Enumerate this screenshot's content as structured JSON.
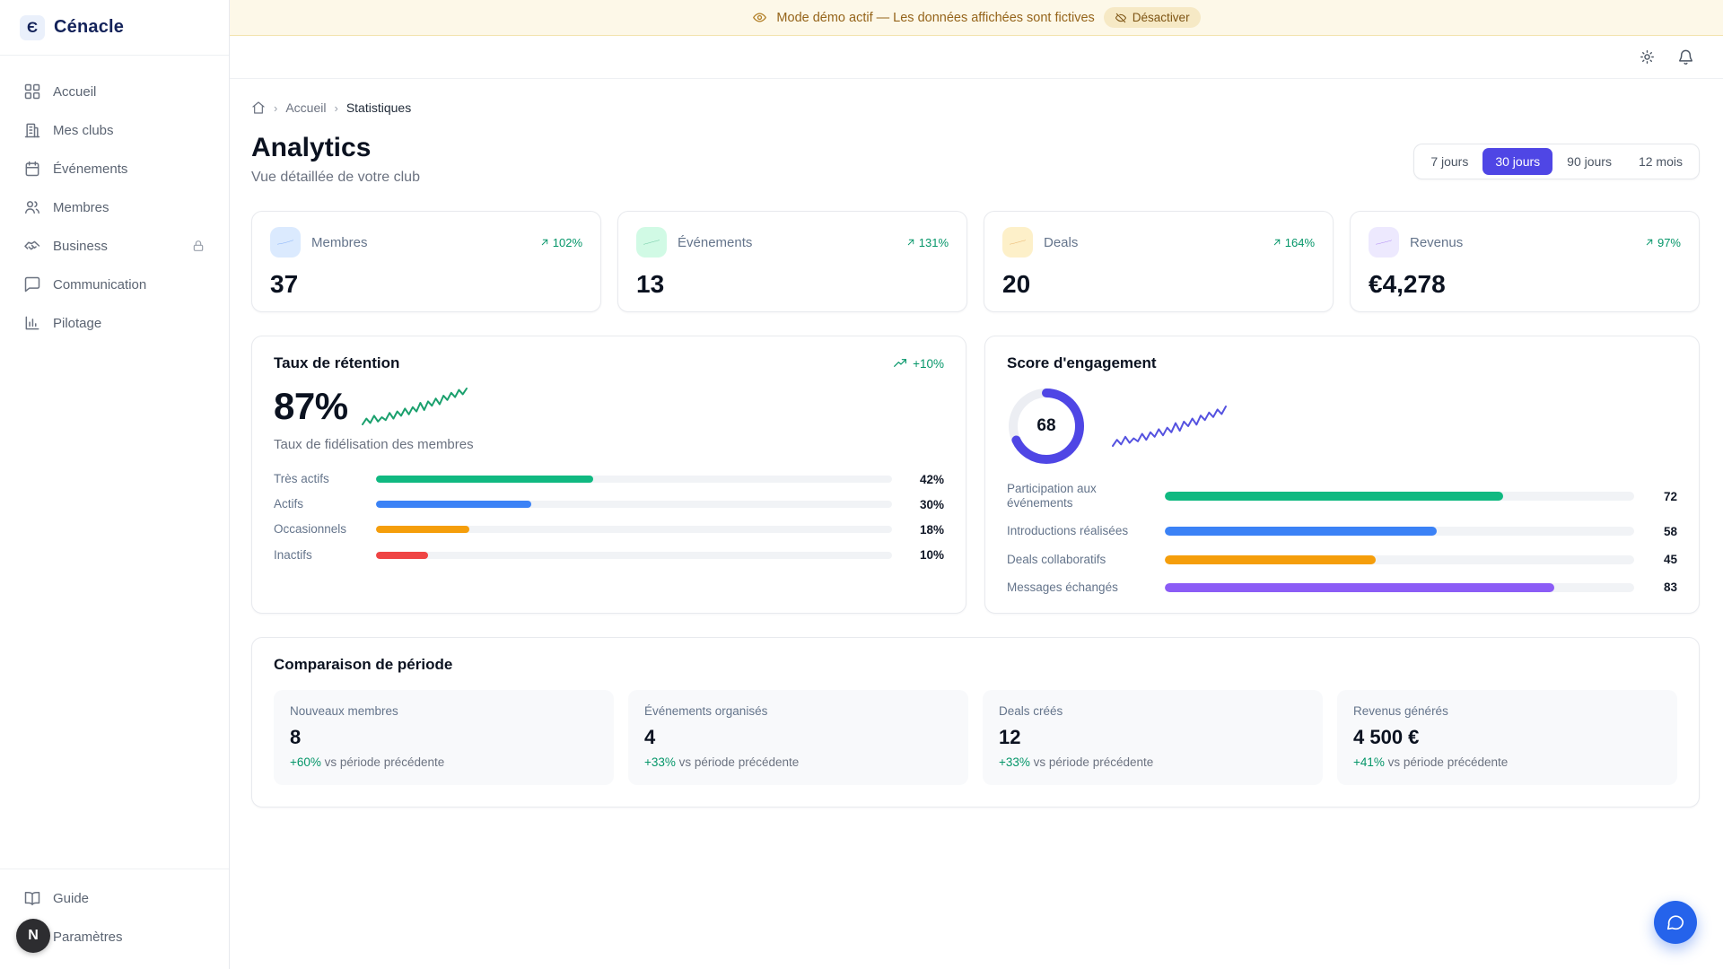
{
  "brand": {
    "name": "Cénacle",
    "glyph": "Є"
  },
  "sidebar": {
    "items": [
      {
        "id": "accueil",
        "label": "Accueil",
        "icon": "grid-icon"
      },
      {
        "id": "mes-clubs",
        "label": "Mes clubs",
        "icon": "building-icon"
      },
      {
        "id": "evenements",
        "label": "Événements",
        "icon": "calendar-icon"
      },
      {
        "id": "membres",
        "label": "Membres",
        "icon": "users-icon"
      },
      {
        "id": "business",
        "label": "Business",
        "icon": "handshake-icon",
        "locked": true
      },
      {
        "id": "communication",
        "label": "Communication",
        "icon": "message-icon"
      },
      {
        "id": "pilotage",
        "label": "Pilotage",
        "icon": "chart-icon"
      }
    ],
    "footer_items": [
      {
        "id": "guide",
        "label": "Guide",
        "icon": "book-icon"
      },
      {
        "id": "parametres",
        "label": "Paramètres",
        "icon": "gear-icon"
      }
    ],
    "avatar_initial": "N"
  },
  "banner": {
    "text": "Mode démo actif — Les données affichées sont fictives",
    "action_label": "Désactiver"
  },
  "breadcrumb": {
    "items": [
      "Accueil",
      "Statistiques"
    ]
  },
  "page": {
    "title": "Analytics",
    "subtitle": "Vue détaillée de votre club"
  },
  "range_tabs": [
    {
      "label": "7 jours",
      "active": false
    },
    {
      "label": "30 jours",
      "active": true
    },
    {
      "label": "90 jours",
      "active": false
    },
    {
      "label": "12 mois",
      "active": false
    }
  ],
  "stat_cards": [
    {
      "id": "membres",
      "label": "Membres",
      "value": "37",
      "change": "102%",
      "icon": "users-icon",
      "icon_color": "#2563eb",
      "icon_bg": "#dbeafe",
      "line_color": "#3b82f6",
      "spark": [
        4,
        6,
        7,
        9,
        10,
        12,
        12,
        14,
        16,
        17,
        19,
        21,
        22,
        24,
        27,
        28,
        31,
        33,
        35,
        38,
        40,
        42,
        45,
        47,
        50,
        52,
        55,
        58,
        60,
        62
      ]
    },
    {
      "id": "evenements",
      "label": "Événements",
      "value": "13",
      "change": "131%",
      "icon": "calendar-icon",
      "icon_color": "#059669",
      "icon_bg": "#d1fae5",
      "line_color": "#1aa06d",
      "spark": [
        3,
        4,
        4,
        7,
        8,
        8,
        11,
        13,
        13,
        16,
        16,
        19,
        21,
        21,
        24,
        24,
        28,
        26,
        30,
        30,
        33,
        33,
        33,
        37,
        37,
        40,
        40,
        43,
        43,
        44
      ]
    },
    {
      "id": "deals",
      "label": "Deals",
      "value": "20",
      "change": "164%",
      "icon": "handshake-icon",
      "icon_color": "#d97706",
      "icon_bg": "#fdf0c9",
      "line_color": "#d9821b",
      "spark": [
        3,
        5,
        6,
        9,
        10,
        13,
        12,
        16,
        18,
        17,
        21,
        24,
        23,
        27,
        30,
        29,
        33,
        36,
        35,
        39,
        42,
        41,
        45,
        48,
        47,
        51,
        54,
        53,
        57,
        58
      ]
    },
    {
      "id": "revenus",
      "label": "Revenus",
      "value": "€4,278",
      "change": "97%",
      "icon": "dollar-icon",
      "icon_color": "#7c3aed",
      "icon_bg": "#ede9fe",
      "line_color": "#7c3aed",
      "spark": [
        3,
        4,
        7,
        6,
        10,
        12,
        11,
        15,
        17,
        16,
        20,
        22,
        21,
        25,
        28,
        27,
        31,
        33,
        32,
        36,
        39,
        38,
        42,
        45,
        44,
        48,
        51,
        50,
        54,
        57
      ]
    }
  ],
  "retention": {
    "title": "Taux de rétention",
    "change": "+10%",
    "value": "87%",
    "subtitle": "Taux de fidélisation des membres",
    "spark_color": "#1aa06d",
    "spark": [
      22,
      30,
      24,
      34,
      26,
      32,
      28,
      38,
      30,
      40,
      34,
      44,
      36,
      46,
      40,
      52,
      42,
      54,
      48,
      58,
      50,
      62,
      56,
      66,
      60,
      70,
      64,
      72
    ],
    "bars": [
      {
        "label": "Très actifs",
        "value": 42,
        "display": "42%",
        "color": "#10b981"
      },
      {
        "label": "Actifs",
        "value": 30,
        "display": "30%",
        "color": "#3b82f6"
      },
      {
        "label": "Occasionnels",
        "value": 18,
        "display": "18%",
        "color": "#f59e0b"
      },
      {
        "label": "Inactifs",
        "value": 10,
        "display": "10%",
        "color": "#ef4444"
      }
    ]
  },
  "engagement": {
    "title": "Score d'engagement",
    "score": 68,
    "ring_color": "#4f46e5",
    "spark_color": "#5552e0",
    "spark": [
      18,
      26,
      20,
      30,
      22,
      28,
      24,
      34,
      26,
      36,
      30,
      40,
      32,
      42,
      36,
      48,
      38,
      50,
      44,
      54,
      46,
      58,
      52,
      62,
      56,
      66,
      60,
      70
    ],
    "bars": [
      {
        "label": "Participation aux événements",
        "value": 72,
        "display": "72",
        "color": "#10b981"
      },
      {
        "label": "Introductions réalisées",
        "value": 58,
        "display": "58",
        "color": "#3b82f6"
      },
      {
        "label": "Deals collaboratifs",
        "value": 45,
        "display": "45",
        "color": "#f59e0b"
      },
      {
        "label": "Messages échangés",
        "value": 83,
        "display": "83",
        "color": "#8b5cf6"
      }
    ]
  },
  "comparison": {
    "title": "Comparaison de période",
    "suffix": "vs période précédente",
    "cards": [
      {
        "label": "Nouveaux membres",
        "value": "8",
        "change": "+60%"
      },
      {
        "label": "Événements organisés",
        "value": "4",
        "change": "+33%"
      },
      {
        "label": "Deals créés",
        "value": "12",
        "change": "+33%"
      },
      {
        "label": "Revenus générés",
        "value": "4 500 €",
        "change": "+41%"
      }
    ]
  }
}
